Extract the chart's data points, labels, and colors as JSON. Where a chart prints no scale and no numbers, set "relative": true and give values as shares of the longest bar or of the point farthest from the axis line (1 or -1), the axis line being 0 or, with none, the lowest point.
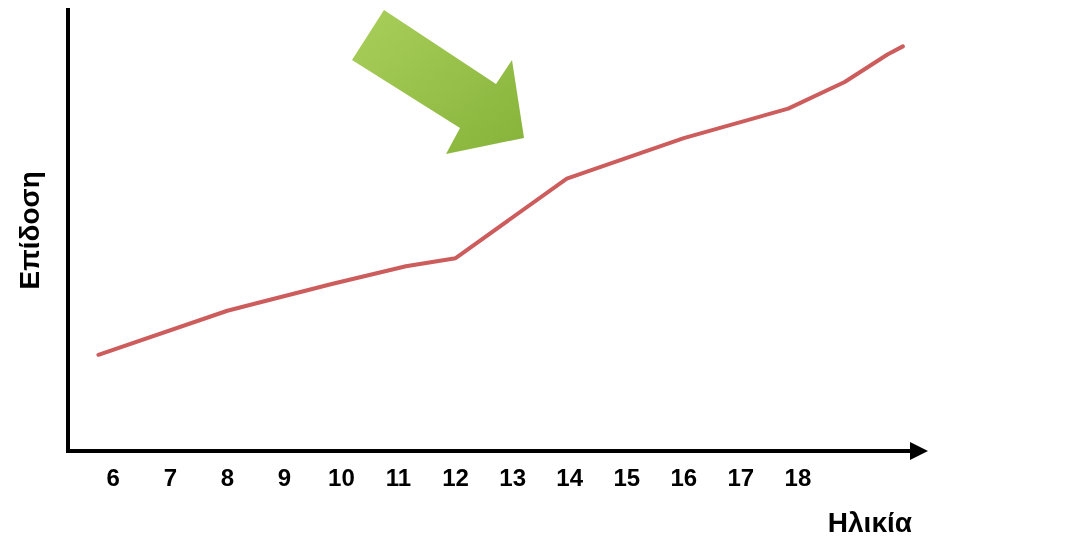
{
  "chart_data": {
    "type": "line",
    "xlabel": "Ηλικία",
    "ylabel": "Επίδοση",
    "relative": true,
    "xlim": [
      5.2,
      20
    ],
    "xticks": [
      6,
      7,
      8,
      9,
      10,
      11,
      12,
      13,
      14,
      15,
      16,
      17,
      18
    ],
    "series": [
      {
        "color": "#cd5c5c",
        "x": [
          5.74,
          8.0,
          9.83,
          11.13,
          12.0,
          13.95,
          16.0,
          17.83,
          18.82,
          19.57,
          19.84
        ],
        "values": [
          0.237,
          0.346,
          0.412,
          0.456,
          0.476,
          0.673,
          0.773,
          0.846,
          0.912,
          0.98,
          1
        ]
      }
    ],
    "grid": false,
    "legend": false,
    "marker": "none",
    "line_style": "solid"
  }
}
